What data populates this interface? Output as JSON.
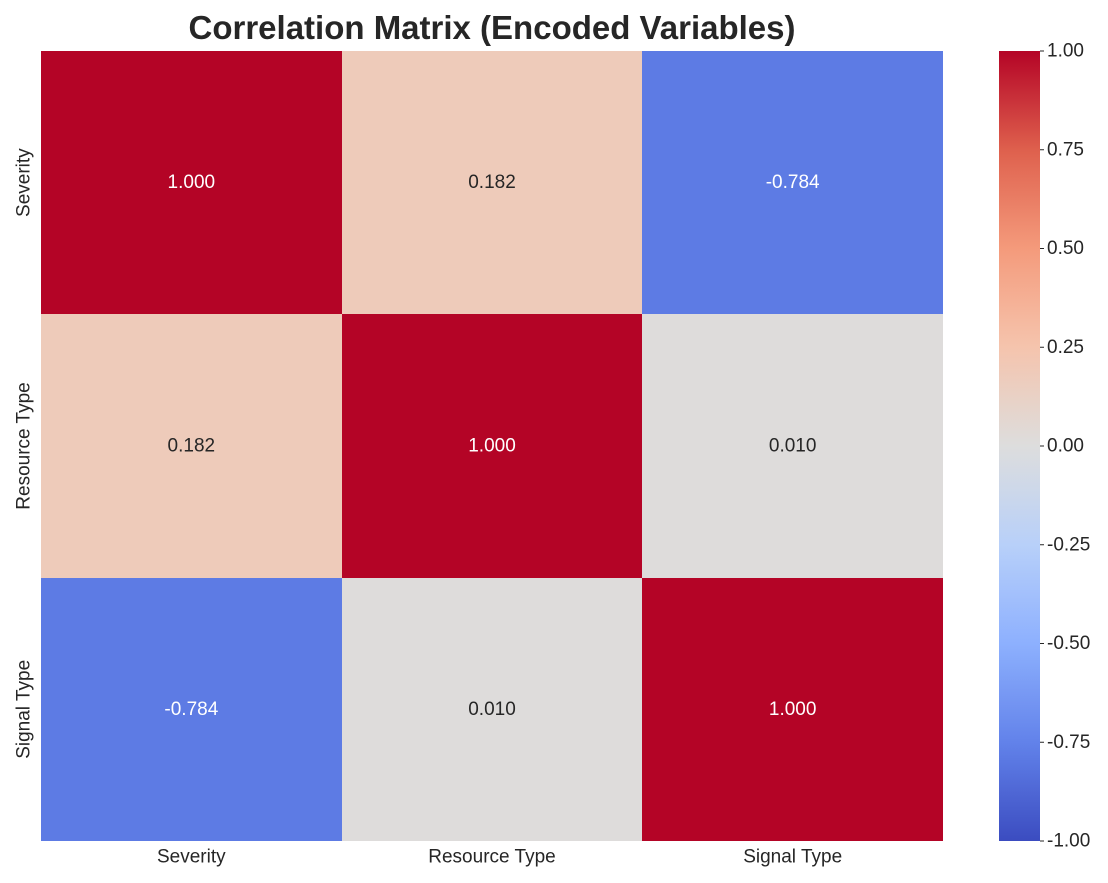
{
  "chart_data": {
    "type": "heatmap",
    "title": "Correlation Matrix (Encoded Variables)",
    "row_labels": [
      "Severity",
      "Resource Type",
      "Signal Type"
    ],
    "col_labels": [
      "Severity",
      "Resource Type",
      "Signal Type"
    ],
    "values": [
      [
        1.0,
        0.182,
        -0.784
      ],
      [
        0.182,
        1.0,
        0.01
      ],
      [
        -0.784,
        0.01,
        1.0
      ]
    ],
    "value_labels": [
      [
        "1.000",
        "0.182",
        "-0.784"
      ],
      [
        "0.182",
        "1.000",
        "0.010"
      ],
      [
        "-0.784",
        "0.010",
        "1.000"
      ]
    ],
    "colormap": "coolwarm",
    "vmin": -1.0,
    "vmax": 1.0,
    "colorbar_ticks": [
      1.0,
      0.75,
      0.5,
      0.25,
      0.0,
      -0.25,
      -0.5,
      -0.75,
      -1.0
    ],
    "colorbar_tick_labels": [
      "1.00",
      "0.75",
      "0.50",
      "0.25",
      "0.00",
      "-0.25",
      "-0.50",
      "-0.75",
      "-1.00"
    ],
    "grid": false,
    "colorbar_placement": "right"
  }
}
